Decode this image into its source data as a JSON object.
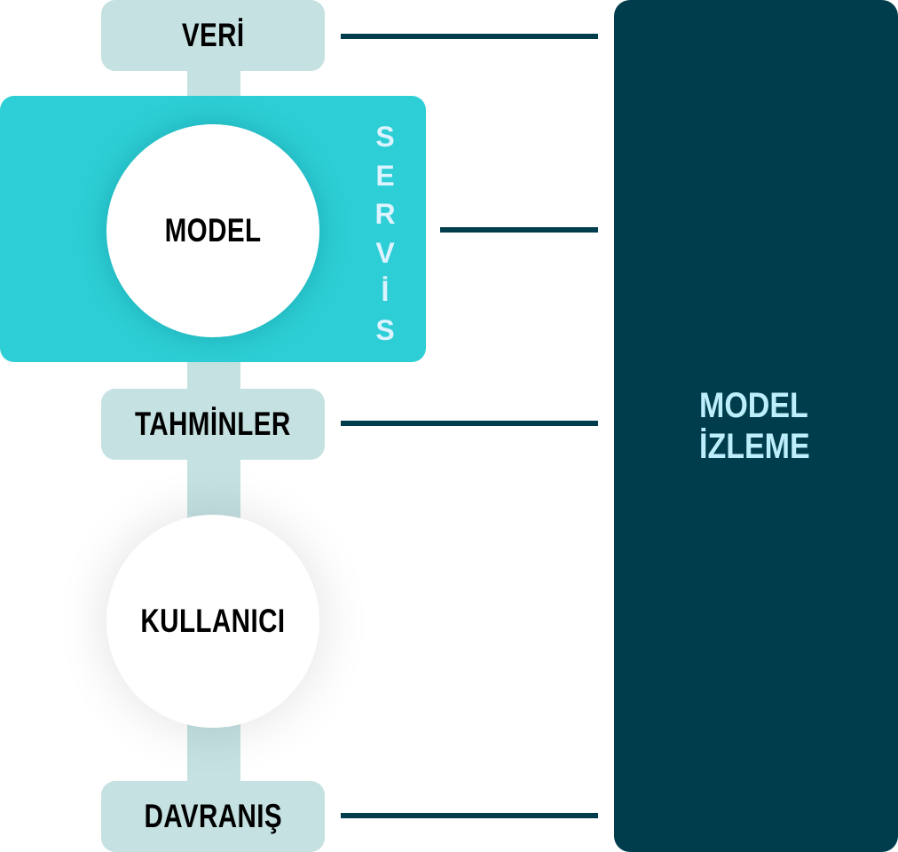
{
  "diagram": {
    "stages": {
      "data": "VERİ",
      "predictions": "TAHMİNLER",
      "behavior": "DAVRANIŞ"
    },
    "circles": {
      "model": "MODEL",
      "user": "KULLANICI"
    },
    "service": {
      "letters": [
        "S",
        "E",
        "R",
        "V",
        "İ",
        "S"
      ]
    },
    "monitoring": {
      "line1": "MODEL",
      "line2": "İZLEME"
    }
  },
  "colors": {
    "stage_fill": "#c5e1e1",
    "service_fill": "#2dced5",
    "monitor_fill": "#003d4c",
    "monitor_text": "#bdeefc",
    "service_text": "#ddf3ff"
  }
}
